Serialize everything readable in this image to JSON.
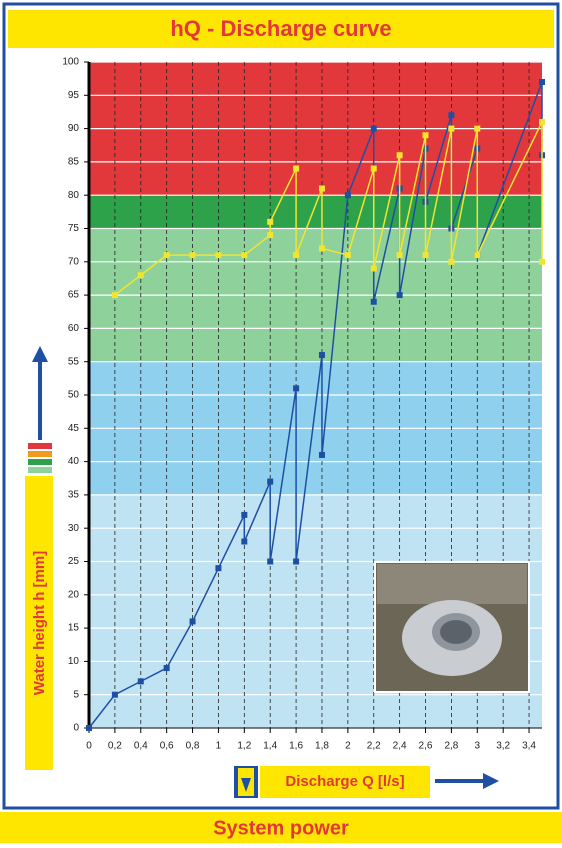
{
  "header": {
    "title": "hQ - Discharge curve"
  },
  "footer": {
    "title": "System power"
  },
  "chart_data": {
    "type": "line",
    "ylabel": "Water height h [mm]",
    "xlabel": "Discharge Q [l/s]",
    "xlim": [
      0,
      3.5
    ],
    "ylim": [
      0,
      100
    ],
    "xticks": [
      0,
      {
        "value": 0.2,
        "label": "0,2"
      },
      {
        "value": 0.4,
        "label": "0,4"
      },
      {
        "value": 0.6,
        "label": "0,6"
      },
      {
        "value": 0.8,
        "label": "0,8"
      },
      1,
      {
        "value": 1.2,
        "label": "1,2"
      },
      {
        "value": 1.4,
        "label": "1,4"
      },
      {
        "value": 1.6,
        "label": "1,6"
      },
      {
        "value": 1.8,
        "label": "1,8"
      },
      2,
      {
        "value": 2.2,
        "label": "2,2"
      },
      {
        "value": 2.4,
        "label": "2,4"
      },
      {
        "value": 2.6,
        "label": "2,6"
      },
      {
        "value": 2.8,
        "label": "2,8"
      },
      3,
      {
        "value": 3.2,
        "label": "3,2"
      },
      {
        "value": 3.4,
        "label": "3,4"
      }
    ],
    "yticks": [
      0,
      5,
      10,
      15,
      20,
      25,
      30,
      35,
      40,
      45,
      50,
      55,
      60,
      65,
      70,
      75,
      80,
      85,
      90,
      95,
      100
    ],
    "bands": [
      {
        "from": 0,
        "to": 35,
        "color": "#bfe3f3"
      },
      {
        "from": 35,
        "to": 55,
        "color": "#8fd0ee"
      },
      {
        "from": 55,
        "to": 75,
        "color": "#8fd19a"
      },
      {
        "from": 75,
        "to": 80,
        "color": "#2ea24a"
      },
      {
        "from": 80,
        "to": 100,
        "color": "#e2383c"
      }
    ],
    "grid": true,
    "series": [
      {
        "color": "#1f4fa3",
        "x": [
          0,
          0.2,
          0.4,
          0.6,
          0.8,
          1,
          1.2,
          1.2,
          1.4,
          1.4,
          1.6,
          1.6,
          1.8,
          1.8,
          2,
          2.2,
          2.2,
          2.4,
          2.4,
          2.6,
          2.6,
          2.8,
          2.8,
          3,
          3,
          3.5,
          3.5
        ],
        "values": [
          0,
          5,
          7,
          9,
          16,
          24,
          32,
          28,
          37,
          25,
          51,
          25,
          56,
          41,
          80,
          90,
          64,
          81,
          65,
          87,
          79,
          92,
          75,
          87,
          71,
          97,
          86
        ]
      },
      {
        "color": "#f2e530",
        "x": [
          0.2,
          0.4,
          0.6,
          0.8,
          1,
          1.2,
          1.4,
          1.4,
          1.6,
          1.6,
          1.8,
          1.8,
          2,
          2.2,
          2.2,
          2.4,
          2.4,
          2.6,
          2.6,
          2.8,
          2.8,
          3,
          3,
          3.5,
          3.5
        ],
        "values": [
          65,
          68,
          71,
          71,
          71,
          71,
          74,
          76,
          84,
          71,
          81,
          72,
          71,
          84,
          69,
          86,
          71,
          89,
          71,
          90,
          70,
          90,
          71,
          91,
          70
        ]
      }
    ]
  }
}
